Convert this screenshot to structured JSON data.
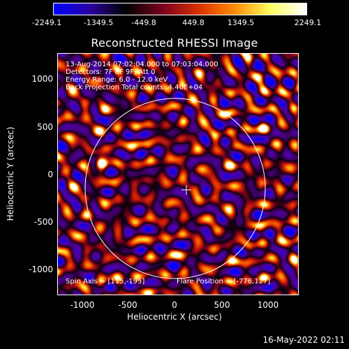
{
  "colorbar": {
    "labels": [
      "-2249.1",
      "-1349.5",
      "-449.8",
      "449.8",
      "1349.5",
      "2249.1"
    ],
    "colors": [
      "#0000ff",
      "#2a00a0",
      "#000000",
      "#7a0020",
      "#d83000",
      "#ff8a00",
      "#ffff60",
      "#ffffff"
    ]
  },
  "plot": {
    "title": "Reconstructed RHESSI Image",
    "xlabel": "Heliocentric X (arcsec)",
    "ylabel": "Heliocentric Y (arcsec)",
    "xticks": [
      "-1000",
      "-500",
      "0",
      "500",
      "1000"
    ],
    "yticks": [
      "1000",
      "500",
      "0",
      "-500",
      "-1000"
    ],
    "info": {
      "time_range": "13-Aug-2014 07:02:04.000 to 07:03:04.000",
      "detectors": "Detectors: 7F 8F 9F, Att 0",
      "energy": "Energy Range: 6.0 - 12.0 keV",
      "method": "Back Projection    Total counts: 4.40E+04",
      "spin_axis": "Spin Axis = [115,-195]",
      "flare_position": "Flare Position = [-776,127]"
    }
  },
  "timestamp": "16-May-2022 02:11"
}
